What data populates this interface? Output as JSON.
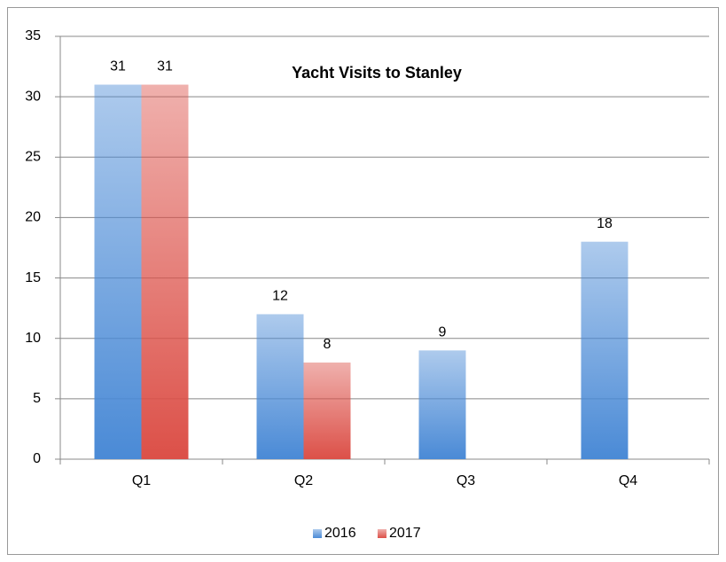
{
  "chart_data": {
    "type": "bar",
    "title": "Yacht Visits to Stanley",
    "categories": [
      "Q1",
      "Q2",
      "Q3",
      "Q4"
    ],
    "series": [
      {
        "name": "2016",
        "color": "#4a8ad6",
        "values": [
          31,
          12,
          9,
          18
        ]
      },
      {
        "name": "2017",
        "color": "#dc5048",
        "values": [
          31,
          8,
          null,
          null
        ]
      }
    ],
    "ylim": [
      0,
      35
    ],
    "yticks": [
      0,
      5,
      10,
      15,
      20,
      25,
      30,
      35
    ],
    "grid": true,
    "legend": "bottom"
  }
}
